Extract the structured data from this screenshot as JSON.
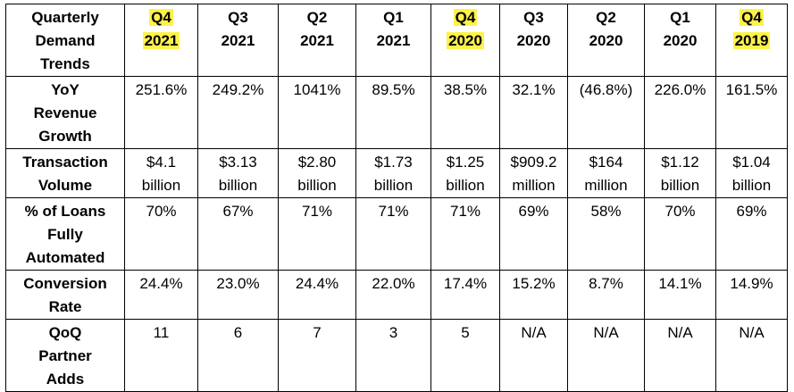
{
  "table": {
    "corner_header": [
      "Quarterly",
      "Demand",
      "Trends"
    ],
    "quarters": [
      {
        "q": "Q4",
        "year": "2021",
        "highlight": true
      },
      {
        "q": "Q3",
        "year": "2021",
        "highlight": false
      },
      {
        "q": "Q2",
        "year": "2021",
        "highlight": false
      },
      {
        "q": "Q1",
        "year": "2021",
        "highlight": false
      },
      {
        "q": "Q4",
        "year": "2020",
        "highlight": true
      },
      {
        "q": "Q3",
        "year": "2020",
        "highlight": false
      },
      {
        "q": "Q2",
        "year": "2020",
        "highlight": false
      },
      {
        "q": "Q1",
        "year": "2020",
        "highlight": false
      },
      {
        "q": "Q4",
        "year": "2019",
        "highlight": true
      }
    ],
    "highlight_color": "#fdf24a",
    "rows": [
      {
        "label": [
          "YoY",
          "Revenue",
          "Growth"
        ],
        "values": [
          [
            "251.6%"
          ],
          [
            "249.2%"
          ],
          [
            "1041%"
          ],
          [
            "89.5%"
          ],
          [
            "38.5%"
          ],
          [
            "32.1%"
          ],
          [
            "(46.8%)"
          ],
          [
            "226.0%"
          ],
          [
            "161.5%"
          ]
        ]
      },
      {
        "label": [
          "Transaction",
          "Volume"
        ],
        "values": [
          [
            "$4.1",
            "billion"
          ],
          [
            "$3.13",
            "billion"
          ],
          [
            "$2.80",
            "billion"
          ],
          [
            "$1.73",
            "billion"
          ],
          [
            "$1.25",
            "billion"
          ],
          [
            "$909.2",
            "million"
          ],
          [
            "$164",
            "million"
          ],
          [
            "$1.12",
            "billion"
          ],
          [
            "$1.04",
            "billion"
          ]
        ]
      },
      {
        "label": [
          "% of Loans",
          "Fully",
          "Automated"
        ],
        "values": [
          [
            "70%"
          ],
          [
            "67%"
          ],
          [
            "71%"
          ],
          [
            "71%"
          ],
          [
            "71%"
          ],
          [
            "69%"
          ],
          [
            "58%"
          ],
          [
            "70%"
          ],
          [
            "69%"
          ]
        ]
      },
      {
        "label": [
          "Conversion",
          "Rate"
        ],
        "values": [
          [
            "24.4%"
          ],
          [
            "23.0%"
          ],
          [
            "24.4%"
          ],
          [
            "22.0%"
          ],
          [
            "17.4%"
          ],
          [
            "15.2%"
          ],
          [
            "8.7%"
          ],
          [
            "14.1%"
          ],
          [
            "14.9%"
          ]
        ]
      },
      {
        "label": [
          "QoQ",
          "Partner",
          "Adds"
        ],
        "values": [
          [
            "11"
          ],
          [
            "6"
          ],
          [
            "7"
          ],
          [
            "3"
          ],
          [
            "5"
          ],
          [
            "N/A"
          ],
          [
            "N/A"
          ],
          [
            "N/A"
          ],
          [
            "N/A"
          ]
        ]
      }
    ]
  }
}
